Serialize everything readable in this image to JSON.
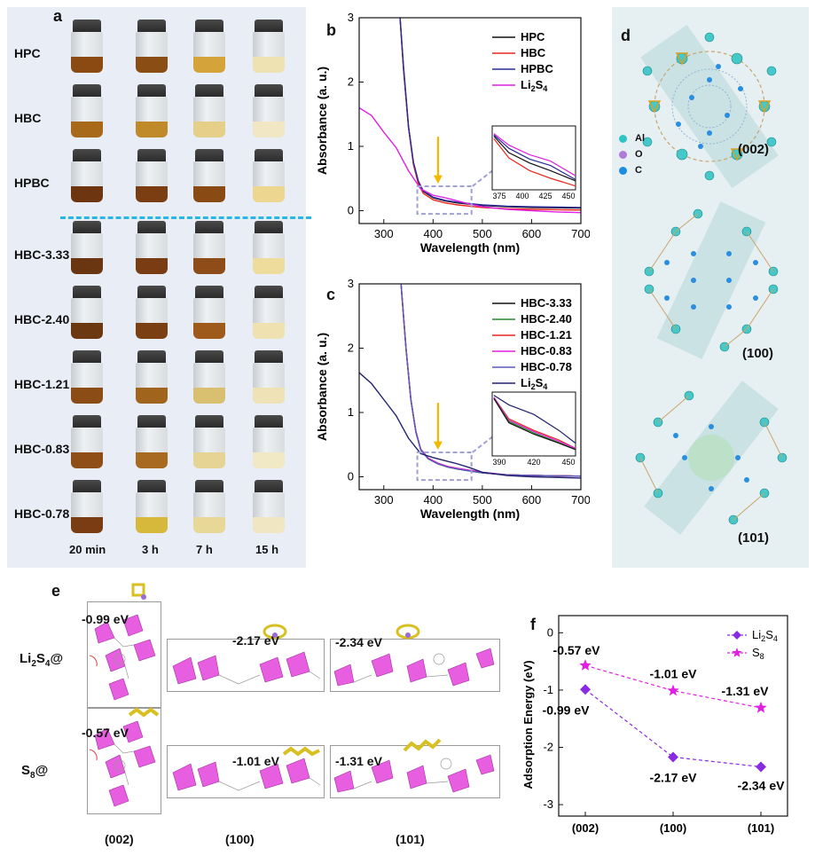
{
  "panel_a": {
    "letter": "a",
    "rows": [
      {
        "label": "HPC",
        "colors": [
          "#8a4a12",
          "#8a4d14",
          "#d4a43a",
          "#efe2b2"
        ]
      },
      {
        "label": "HBC",
        "colors": [
          "#a86a1a",
          "#c08a2a",
          "#e6cf88",
          "#f1e7c4"
        ]
      },
      {
        "label": "HPBC",
        "colors": [
          "#6e3610",
          "#7a3e12",
          "#8a4a14",
          "#ecd690"
        ]
      },
      {
        "label": "HBC-3.33",
        "colors": [
          "#6a3612",
          "#7a3c12",
          "#8e4c18",
          "#eedc9c"
        ]
      },
      {
        "label": "HBC-2.40",
        "colors": [
          "#6c3812",
          "#7a4014",
          "#9e5a1a",
          "#efe2b0"
        ]
      },
      {
        "label": "HBC-1.21",
        "colors": [
          "#8c4c16",
          "#a0641c",
          "#d8c070",
          "#efe2b6"
        ]
      },
      {
        "label": "HBC-0.83",
        "colors": [
          "#8e4e16",
          "#a86a20",
          "#e6d494",
          "#f1e8c6"
        ]
      },
      {
        "label": "HBC-0.78",
        "colors": [
          "#7a3c12",
          "#d6b83a",
          "#e8d898",
          "#f0e6c2"
        ]
      }
    ],
    "times": [
      "20 min",
      "3 h",
      "7 h",
      "15 h"
    ]
  },
  "panel_b": {
    "letter": "b",
    "chart_data": {
      "type": "line",
      "xlabel": "Wavelength (nm)",
      "ylabel": "Absorbance (a. u.)",
      "xlim": [
        250,
        700
      ],
      "ylim": [
        -0.2,
        3
      ],
      "xticks": [
        300,
        400,
        500,
        600,
        700
      ],
      "yticks": [
        0,
        1,
        2,
        3
      ],
      "legend_position": "top-right",
      "series": [
        {
          "name": "HPC",
          "color": "#111111",
          "x": [
            333,
            340,
            350,
            360,
            370,
            380,
            400,
            425,
            450,
            500,
            550,
            600,
            700
          ],
          "y": [
            3.0,
            2.2,
            1.3,
            0.75,
            0.45,
            0.3,
            0.2,
            0.15,
            0.12,
            0.08,
            0.06,
            0.05,
            0.04
          ]
        },
        {
          "name": "HBC",
          "color": "#e8281e",
          "x": [
            333,
            340,
            350,
            360,
            370,
            380,
            400,
            425,
            450,
            500,
            550,
            600,
            700
          ],
          "y": [
            3.0,
            2.2,
            1.3,
            0.72,
            0.42,
            0.27,
            0.17,
            0.12,
            0.09,
            0.05,
            0.03,
            0.02,
            0.01
          ]
        },
        {
          "name": "HPBC",
          "color": "#2a2a9a",
          "x": [
            333,
            340,
            350,
            360,
            370,
            380,
            400,
            425,
            450,
            500,
            550,
            600,
            700
          ],
          "y": [
            3.0,
            2.25,
            1.32,
            0.76,
            0.46,
            0.31,
            0.21,
            0.16,
            0.13,
            0.09,
            0.07,
            0.06,
            0.05
          ]
        },
        {
          "name": "Li2S4",
          "color": "#e020e0",
          "x": [
            250,
            275,
            300,
            325,
            350,
            375,
            400,
            425,
            450,
            475,
            500,
            550,
            600,
            650,
            700
          ],
          "y": [
            1.6,
            1.48,
            1.22,
            0.98,
            0.62,
            0.34,
            0.24,
            0.2,
            0.15,
            0.1,
            0.06,
            0.02,
            0.0,
            -0.02,
            -0.03
          ]
        }
      ],
      "inset_xticks": [
        375,
        400,
        425,
        450
      ],
      "legend": [
        {
          "name": "HPC",
          "color": "#111111"
        },
        {
          "name": "HBC",
          "color": "#e8281e"
        },
        {
          "name": "HPBC",
          "color": "#2a2a9a"
        },
        {
          "name": "Li2S4",
          "color": "#e020e0"
        }
      ]
    }
  },
  "panel_c": {
    "letter": "c",
    "chart_data": {
      "type": "line",
      "xlabel": "Wavelength (nm)",
      "ylabel": "Absorbance (a. u.)",
      "xlim": [
        250,
        700
      ],
      "ylim": [
        -0.2,
        3
      ],
      "xticks": [
        300,
        400,
        500,
        600,
        700
      ],
      "yticks": [
        0,
        1,
        2,
        3
      ],
      "legend_position": "top-right",
      "series": [
        {
          "name": "HBC-3.33",
          "color": "#111111",
          "x": [
            335,
            345,
            355,
            365,
            375,
            390,
            410,
            430,
            450,
            500,
            550,
            600,
            700
          ],
          "y": [
            3.0,
            2.0,
            1.2,
            0.7,
            0.42,
            0.28,
            0.2,
            0.15,
            0.12,
            0.06,
            0.03,
            0.02,
            0.01
          ]
        },
        {
          "name": "HBC-2.40",
          "color": "#2a8a2a",
          "x": [
            335,
            345,
            355,
            365,
            375,
            390,
            410,
            430,
            450,
            500,
            550,
            600,
            700
          ],
          "y": [
            3.0,
            2.0,
            1.2,
            0.7,
            0.42,
            0.28,
            0.2,
            0.15,
            0.12,
            0.06,
            0.03,
            0.02,
            0.01
          ]
        },
        {
          "name": "HBC-1.21",
          "color": "#e8281e",
          "x": [
            335,
            345,
            355,
            365,
            375,
            390,
            410,
            430,
            450,
            500,
            550,
            600,
            700
          ],
          "y": [
            3.0,
            2.0,
            1.2,
            0.71,
            0.43,
            0.29,
            0.21,
            0.16,
            0.13,
            0.07,
            0.03,
            0.02,
            0.01
          ]
        },
        {
          "name": "HBC-0.83",
          "color": "#e020e0",
          "x": [
            335,
            345,
            355,
            365,
            375,
            390,
            410,
            430,
            450,
            500,
            550,
            600,
            700
          ],
          "y": [
            3.0,
            2.0,
            1.2,
            0.71,
            0.43,
            0.29,
            0.21,
            0.16,
            0.13,
            0.07,
            0.03,
            0.02,
            0.01
          ]
        },
        {
          "name": "HBC-0.78",
          "color": "#5a5ab8",
          "x": [
            335,
            345,
            355,
            365,
            375,
            390,
            410,
            430,
            450,
            500,
            550,
            600,
            700
          ],
          "y": [
            3.0,
            2.0,
            1.2,
            0.7,
            0.42,
            0.28,
            0.2,
            0.15,
            0.12,
            0.06,
            0.03,
            0.02,
            0.01
          ]
        },
        {
          "name": "Li2S4",
          "color": "#22226e",
          "x": [
            250,
            275,
            300,
            325,
            350,
            375,
            400,
            425,
            450,
            475,
            500,
            550,
            600,
            700
          ],
          "y": [
            1.62,
            1.45,
            1.2,
            0.95,
            0.6,
            0.36,
            0.3,
            0.25,
            0.2,
            0.14,
            0.07,
            0.02,
            0.0,
            -0.02
          ]
        }
      ],
      "inset_xticks": [
        390,
        420,
        450
      ],
      "legend": [
        {
          "name": "HBC-3.33",
          "color": "#111111"
        },
        {
          "name": "HBC-2.40",
          "color": "#2a8a2a"
        },
        {
          "name": "HBC-1.21",
          "color": "#e8281e"
        },
        {
          "name": "HBC-0.83",
          "color": "#e020e0"
        },
        {
          "name": "HBC-0.78",
          "color": "#5a5ab8"
        },
        {
          "name": "Li2S4",
          "color": "#22226e"
        }
      ]
    }
  },
  "panel_d": {
    "letter": "d",
    "legend": [
      {
        "label": "Al",
        "color": "#2ec4c4"
      },
      {
        "label": "O",
        "color": "#b07ad8"
      },
      {
        "label": "C",
        "color": "#1a8ee0"
      }
    ],
    "facets": [
      "(002)",
      "(100)",
      "(101)"
    ]
  },
  "panel_e": {
    "letter": "e",
    "rows": [
      {
        "label": "Li2S4@",
        "energies": [
          "-0.99 eV",
          "-2.17 eV",
          "-2.34 eV"
        ]
      },
      {
        "label": "S8@",
        "energies": [
          "-0.57 eV",
          "-1.01 eV",
          "-1.31 eV"
        ]
      }
    ],
    "facets": [
      "(002)",
      "(100)",
      "(101)"
    ]
  },
  "panel_f": {
    "letter": "f",
    "chart_data": {
      "type": "line",
      "ylabel": "Adsorption Energy (eV)",
      "categories": [
        "(002)",
        "(100)",
        "(101)"
      ],
      "ylim": [
        -3.2,
        0.3
      ],
      "yticks": [
        0,
        -1,
        -2,
        -3
      ],
      "legend_position": "top-right",
      "series": [
        {
          "name": "Li2S4",
          "color": "#8a2be2",
          "values": [
            -0.99,
            -2.17,
            -2.34
          ],
          "labels": [
            "-0.99 eV",
            "-2.17 eV",
            "-2.34 eV"
          ]
        },
        {
          "name": "S8",
          "color": "#e020e0",
          "values": [
            -0.57,
            -1.01,
            -1.31
          ],
          "labels": [
            "-0.57 eV",
            "-1.01 eV",
            "-1.31 eV"
          ]
        }
      ]
    }
  }
}
